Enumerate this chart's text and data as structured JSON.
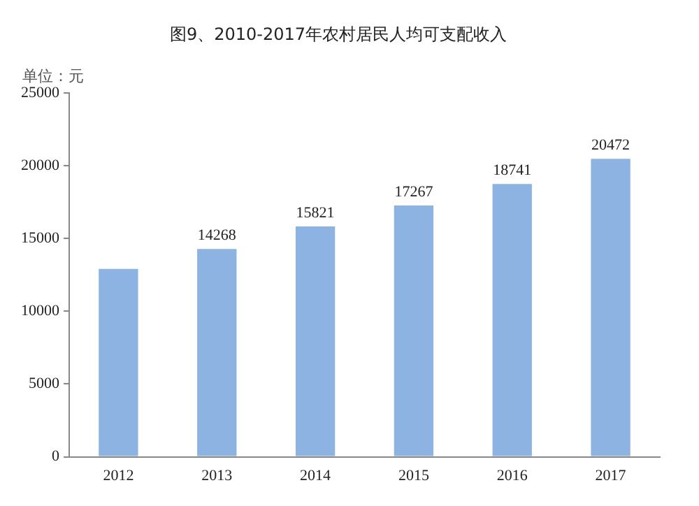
{
  "chart_data": {
    "type": "bar",
    "title": "图9、2010-2017年农村居民人均可支配收入",
    "ylabel": "单位：元",
    "categories": [
      "2012",
      "2013",
      "2014",
      "2015",
      "2016",
      "2017"
    ],
    "values": [
      12900,
      14268,
      15821,
      17267,
      18741,
      20472
    ],
    "value_labels": [
      null,
      "14268",
      "15821",
      "17267",
      "18741",
      "20472"
    ],
    "color": "#8db3e2",
    "ylim": [
      0,
      25000
    ],
    "yticks": [
      0,
      5000,
      10000,
      15000,
      20000,
      25000
    ],
    "grid": false,
    "legend": false
  }
}
